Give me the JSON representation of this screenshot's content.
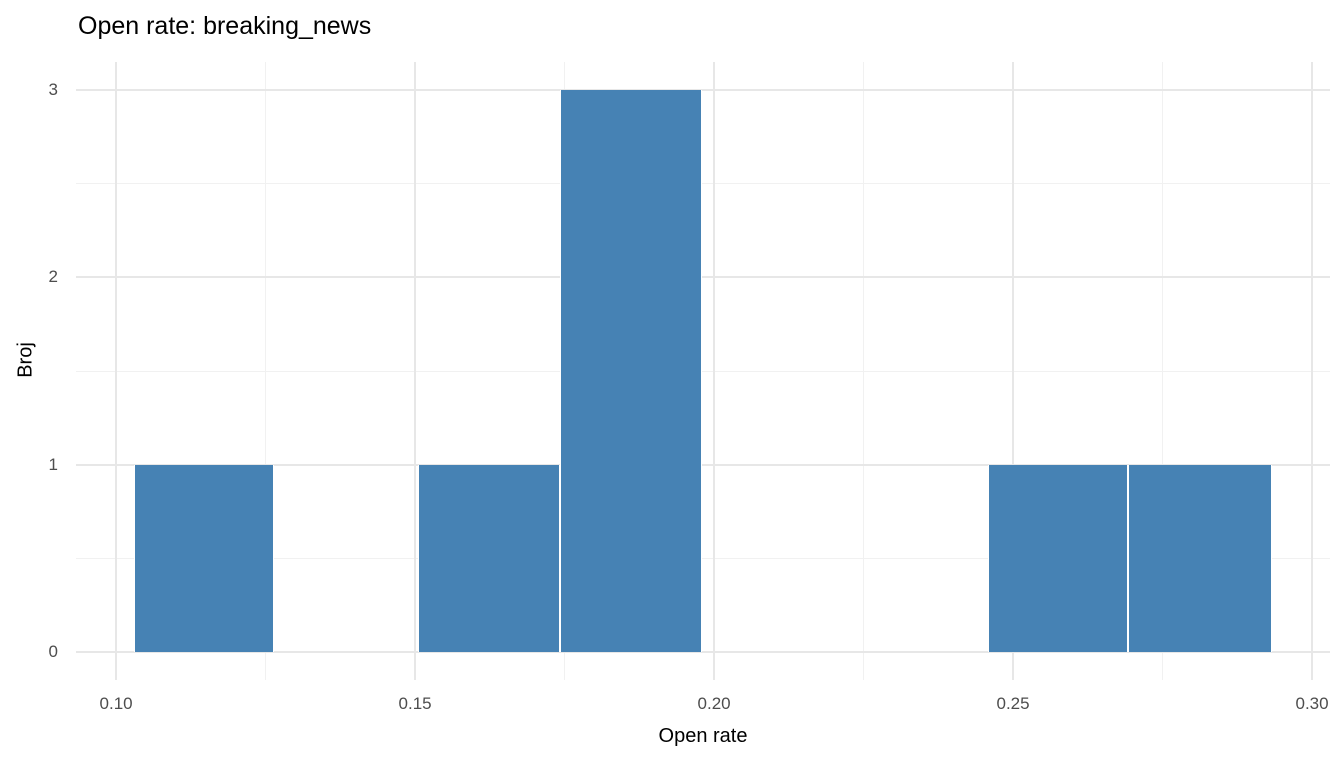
{
  "chart_data": {
    "type": "histogram",
    "title": "Open rate: breaking_news",
    "xlabel": "Open rate",
    "ylabel": "Broj",
    "legend": "none",
    "grid": "on",
    "x_domain": [
      0.0933,
      0.303
    ],
    "y_domain": [
      -0.15,
      3.15
    ],
    "x_ticks": [
      {
        "value": 0.1,
        "label": "0.10"
      },
      {
        "value": 0.15,
        "label": "0.15"
      },
      {
        "value": 0.2,
        "label": "0.20"
      },
      {
        "value": 0.25,
        "label": "0.25"
      },
      {
        "value": 0.3,
        "label": "0.30"
      }
    ],
    "y_ticks": [
      {
        "value": 0,
        "label": "0"
      },
      {
        "value": 1,
        "label": "1"
      },
      {
        "value": 2,
        "label": "2"
      },
      {
        "value": 3,
        "label": "3"
      }
    ],
    "x_minor_ticks": [
      0.125,
      0.175,
      0.225,
      0.275
    ],
    "y_minor_ticks": [
      0.5,
      1.5,
      2.5
    ],
    "bins": [
      {
        "x0": 0.103,
        "x1": 0.1264,
        "count": 1
      },
      {
        "x0": 0.1264,
        "x1": 0.1505,
        "count": 0
      },
      {
        "x0": 0.1505,
        "x1": 0.1743,
        "count": 1
      },
      {
        "x0": 0.1743,
        "x1": 0.198,
        "count": 3
      },
      {
        "x0": 0.198,
        "x1": 0.2215,
        "count": 0
      },
      {
        "x0": 0.2215,
        "x1": 0.2458,
        "count": 0
      },
      {
        "x0": 0.2458,
        "x1": 0.2692,
        "count": 1
      },
      {
        "x0": 0.2692,
        "x1": 0.2933,
        "count": 1
      }
    ],
    "colors": {
      "bar_fill": "#4682b4",
      "bar_separator": "#ffffff",
      "grid_major": "#e7e7e7",
      "grid_minor": "#f1f1f1",
      "tick_label": "#4d4d4d",
      "title_text": "#000000",
      "background": "#ffffff"
    }
  }
}
